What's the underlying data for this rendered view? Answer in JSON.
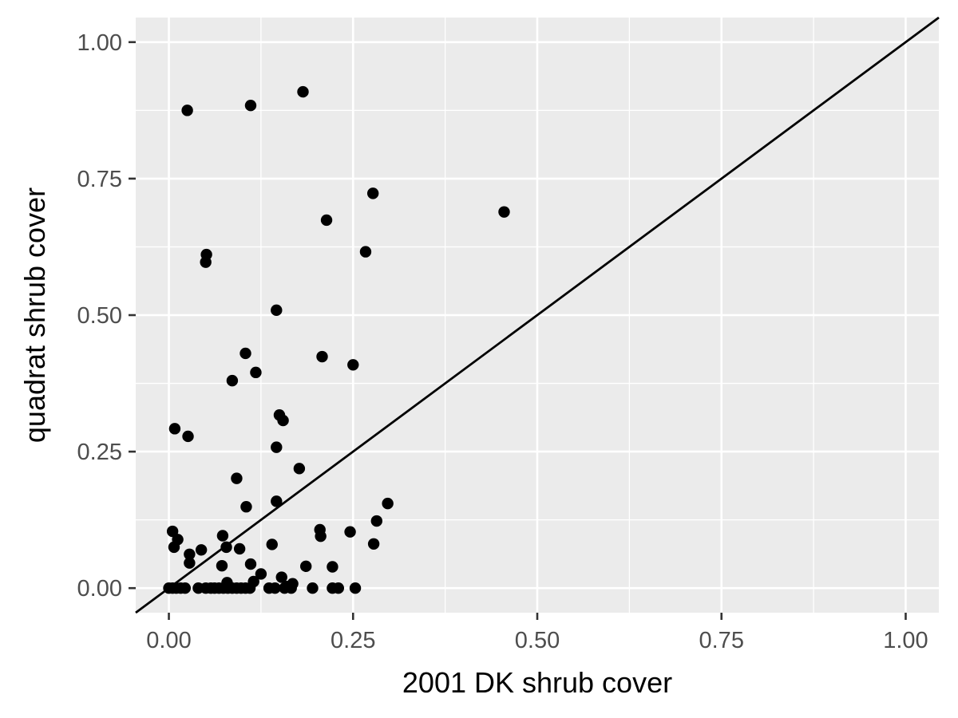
{
  "chart_data": {
    "type": "scatter",
    "xlabel": "2001 DK shrub cover",
    "ylabel": "quadrat shrub cover",
    "xlim": [
      -0.045,
      1.045
    ],
    "ylim": [
      -0.045,
      1.045
    ],
    "x_ticks": [
      0,
      0.25,
      0.5,
      0.75,
      1
    ],
    "y_ticks": [
      0,
      0.25,
      0.5,
      0.75,
      1
    ],
    "x_tick_labels": [
      "0.00",
      "0.25",
      "0.50",
      "0.75",
      "1.00"
    ],
    "y_tick_labels": [
      "0.00",
      "0.25",
      "0.50",
      "0.75",
      "1.00"
    ],
    "grid": true,
    "reference_line": {
      "slope": 1,
      "intercept": 0,
      "color": "#000000"
    },
    "colors": {
      "panel": "#ebebeb",
      "grid": "#ffffff",
      "point": "#000000",
      "tick_text": "#4d4d4d",
      "axis_tick": "#333333"
    },
    "points": [
      {
        "x": 0.025,
        "y": 0.875
      },
      {
        "x": 0.111,
        "y": 0.884
      },
      {
        "x": 0.182,
        "y": 0.909
      },
      {
        "x": 0.277,
        "y": 0.723
      },
      {
        "x": 0.455,
        "y": 0.689
      },
      {
        "x": 0.214,
        "y": 0.674
      },
      {
        "x": 0.267,
        "y": 0.616
      },
      {
        "x": 0.051,
        "y": 0.611
      },
      {
        "x": 0.05,
        "y": 0.597
      },
      {
        "x": 0.146,
        "y": 0.509
      },
      {
        "x": 0.104,
        "y": 0.43
      },
      {
        "x": 0.208,
        "y": 0.424
      },
      {
        "x": 0.25,
        "y": 0.409
      },
      {
        "x": 0.118,
        "y": 0.395
      },
      {
        "x": 0.086,
        "y": 0.38
      },
      {
        "x": 0.15,
        "y": 0.317
      },
      {
        "x": 0.155,
        "y": 0.307
      },
      {
        "x": 0.008,
        "y": 0.292
      },
      {
        "x": 0.026,
        "y": 0.278
      },
      {
        "x": 0.146,
        "y": 0.258
      },
      {
        "x": 0.177,
        "y": 0.219
      },
      {
        "x": 0.092,
        "y": 0.201
      },
      {
        "x": 0.146,
        "y": 0.159
      },
      {
        "x": 0.297,
        "y": 0.155
      },
      {
        "x": 0.105,
        "y": 0.149
      },
      {
        "x": 0.282,
        "y": 0.123
      },
      {
        "x": 0.205,
        "y": 0.107
      },
      {
        "x": 0.005,
        "y": 0.104
      },
      {
        "x": 0.246,
        "y": 0.103
      },
      {
        "x": 0.073,
        "y": 0.096
      },
      {
        "x": 0.206,
        "y": 0.095
      },
      {
        "x": 0.012,
        "y": 0.089
      },
      {
        "x": 0.278,
        "y": 0.081
      },
      {
        "x": 0.14,
        "y": 0.08
      },
      {
        "x": 0.007,
        "y": 0.075
      },
      {
        "x": 0.078,
        "y": 0.075
      },
      {
        "x": 0.096,
        "y": 0.072
      },
      {
        "x": 0.044,
        "y": 0.07
      },
      {
        "x": 0.028,
        "y": 0.062
      },
      {
        "x": 0.028,
        "y": 0.046
      },
      {
        "x": 0.111,
        "y": 0.044
      },
      {
        "x": 0.072,
        "y": 0.041
      },
      {
        "x": 0.186,
        "y": 0.04
      },
      {
        "x": 0.222,
        "y": 0.039
      },
      {
        "x": 0.125,
        "y": 0.026
      },
      {
        "x": 0.153,
        "y": 0.02
      },
      {
        "x": 0.115,
        "y": 0.012
      },
      {
        "x": 0.079,
        "y": 0.01
      },
      {
        "x": 0.168,
        "y": 0.008
      },
      {
        "x": 0.16,
        "y": 0.003
      },
      {
        "x": 0.0,
        "y": 0.0
      },
      {
        "x": 0.005,
        "y": 0.0
      },
      {
        "x": 0.01,
        "y": 0.0
      },
      {
        "x": 0.016,
        "y": 0.0
      },
      {
        "x": 0.022,
        "y": 0.0
      },
      {
        "x": 0.04,
        "y": 0.0
      },
      {
        "x": 0.05,
        "y": 0.0
      },
      {
        "x": 0.057,
        "y": 0.0
      },
      {
        "x": 0.062,
        "y": 0.0
      },
      {
        "x": 0.068,
        "y": 0.0
      },
      {
        "x": 0.074,
        "y": 0.0
      },
      {
        "x": 0.08,
        "y": 0.0
      },
      {
        "x": 0.086,
        "y": 0.0
      },
      {
        "x": 0.092,
        "y": 0.0
      },
      {
        "x": 0.098,
        "y": 0.0
      },
      {
        "x": 0.104,
        "y": 0.0
      },
      {
        "x": 0.11,
        "y": 0.0
      },
      {
        "x": 0.136,
        "y": 0.0
      },
      {
        "x": 0.144,
        "y": 0.0
      },
      {
        "x": 0.157,
        "y": 0.0
      },
      {
        "x": 0.166,
        "y": 0.0
      },
      {
        "x": 0.195,
        "y": 0.0
      },
      {
        "x": 0.222,
        "y": 0.0
      },
      {
        "x": 0.23,
        "y": 0.0
      },
      {
        "x": 0.253,
        "y": 0.0
      }
    ]
  }
}
